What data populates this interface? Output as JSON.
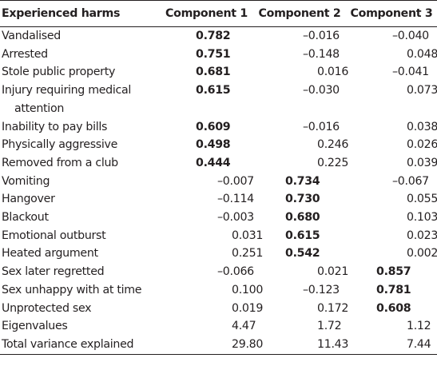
{
  "table": {
    "headers": [
      "Experienced harms",
      "Component 1",
      "Component 2",
      "Component 3"
    ],
    "rows": [
      {
        "label": "Vandalised",
        "values": [
          "0.782",
          "–0.016",
          "–0.040"
        ],
        "bold": [
          true,
          false,
          false
        ]
      },
      {
        "label": "Arrested",
        "values": [
          "0.751",
          "–0.148",
          "0.048"
        ],
        "bold": [
          true,
          false,
          false
        ]
      },
      {
        "label": "Stole public property",
        "values": [
          "0.681",
          "0.016",
          "–0.041"
        ],
        "bold": [
          true,
          false,
          false
        ]
      },
      {
        "label": "Injury requiring medical attention",
        "label_lines": [
          "Injury requiring medical",
          "attention"
        ],
        "values": [
          "0.615",
          "–0.030",
          "0.073"
        ],
        "bold": [
          true,
          false,
          false
        ]
      },
      {
        "label": "Inability to pay bills",
        "values": [
          "0.609",
          "–0.016",
          "0.038"
        ],
        "bold": [
          true,
          false,
          false
        ]
      },
      {
        "label": "Physically aggressive",
        "values": [
          "0.498",
          "0.246",
          "0.026"
        ],
        "bold": [
          true,
          false,
          false
        ]
      },
      {
        "label": "Removed from a club",
        "values": [
          "0.444",
          "0.225",
          "0.039"
        ],
        "bold": [
          true,
          false,
          false
        ]
      },
      {
        "label": "Vomiting",
        "values": [
          "–0.007",
          "0.734",
          "–0.067"
        ],
        "bold": [
          false,
          true,
          false
        ]
      },
      {
        "label": "Hangover",
        "values": [
          "–0.114",
          "0.730",
          "0.055"
        ],
        "bold": [
          false,
          true,
          false
        ]
      },
      {
        "label": "Blackout",
        "values": [
          "–0.003",
          "0.680",
          "0.103"
        ],
        "bold": [
          false,
          true,
          false
        ]
      },
      {
        "label": "Emotional outburst",
        "values": [
          "0.031",
          "0.615",
          "0.023"
        ],
        "bold": [
          false,
          true,
          false
        ]
      },
      {
        "label": "Heated argument",
        "values": [
          "0.251",
          "0.542",
          "0.002"
        ],
        "bold": [
          false,
          true,
          false
        ]
      },
      {
        "label": "Sex later regretted",
        "values": [
          "–0.066",
          "0.021",
          "0.857"
        ],
        "bold": [
          false,
          false,
          true
        ]
      },
      {
        "label": "Sex unhappy with at time",
        "values": [
          "0.100",
          "–0.123",
          "0.781"
        ],
        "bold": [
          false,
          false,
          true
        ]
      },
      {
        "label": "Unprotected sex",
        "values": [
          "0.019",
          "0.172",
          "0.608"
        ],
        "bold": [
          false,
          false,
          true
        ]
      },
      {
        "label": "Eigenvalues",
        "values": [
          "4.47",
          "1.72",
          "1.12"
        ],
        "bold": [
          false,
          false,
          false
        ]
      },
      {
        "label": "Total variance explained",
        "values": [
          "29.80",
          "11.43",
          "7.44"
        ],
        "bold": [
          false,
          false,
          false
        ]
      }
    ]
  }
}
